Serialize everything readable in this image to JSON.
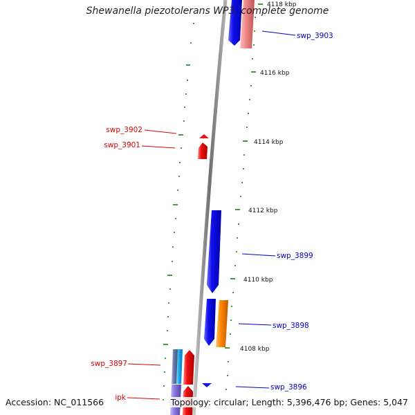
{
  "title": "Shewanella piezotolerans WP3, complete genome",
  "accession_text": "Accession: NC_011566",
  "topology_text": "Topology: circular; Length: 5,396,476 bp; Genes: 5,047",
  "colors": {
    "forward_label": "#0000cc",
    "reverse_label": "#dd0000",
    "backbone": "#888888",
    "tick": "#1a7a1a",
    "gene_blue": "#1111ee",
    "gene_red": "#ee1111",
    "gene_orange": "#ff8800",
    "gene_light_red": "#ee8888",
    "gene_light_blue": "#22aaee",
    "gene_slate": "#6677aa",
    "gene_lavender": "#8877dd"
  },
  "scale_ticks": [
    {
      "label": "4118 kbp"
    },
    {
      "label": "4116 kbp"
    },
    {
      "label": "4114 kbp"
    },
    {
      "label": "4112 kbp"
    },
    {
      "label": "4110 kbp"
    },
    {
      "label": "4108 kbp"
    }
  ],
  "gene_labels_right": [
    {
      "label": "swp_3903"
    },
    {
      "label": "swp_3899"
    },
    {
      "label": "swp_3898"
    },
    {
      "label": "swp_3896"
    }
  ],
  "gene_labels_left": [
    {
      "label": "swp_3902"
    },
    {
      "label": "swp_3901"
    },
    {
      "label": "swp_3897"
    },
    {
      "label": "ipk"
    }
  ]
}
